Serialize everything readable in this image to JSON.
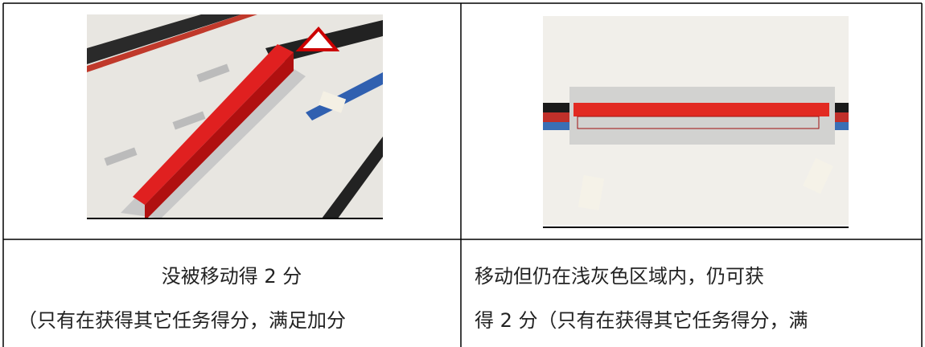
{
  "table": {
    "rows": [
      {
        "cells": [
          {
            "lines": [
              "没被移动得 2 分",
              "（只有在获得其它任务得分，满足加分"
            ]
          },
          {
            "lines": [
              "移动但仍在浅灰色区域内，仍可获",
              "得 2 分（只有在获得其它任务得分，满"
            ]
          }
        ]
      }
    ]
  }
}
